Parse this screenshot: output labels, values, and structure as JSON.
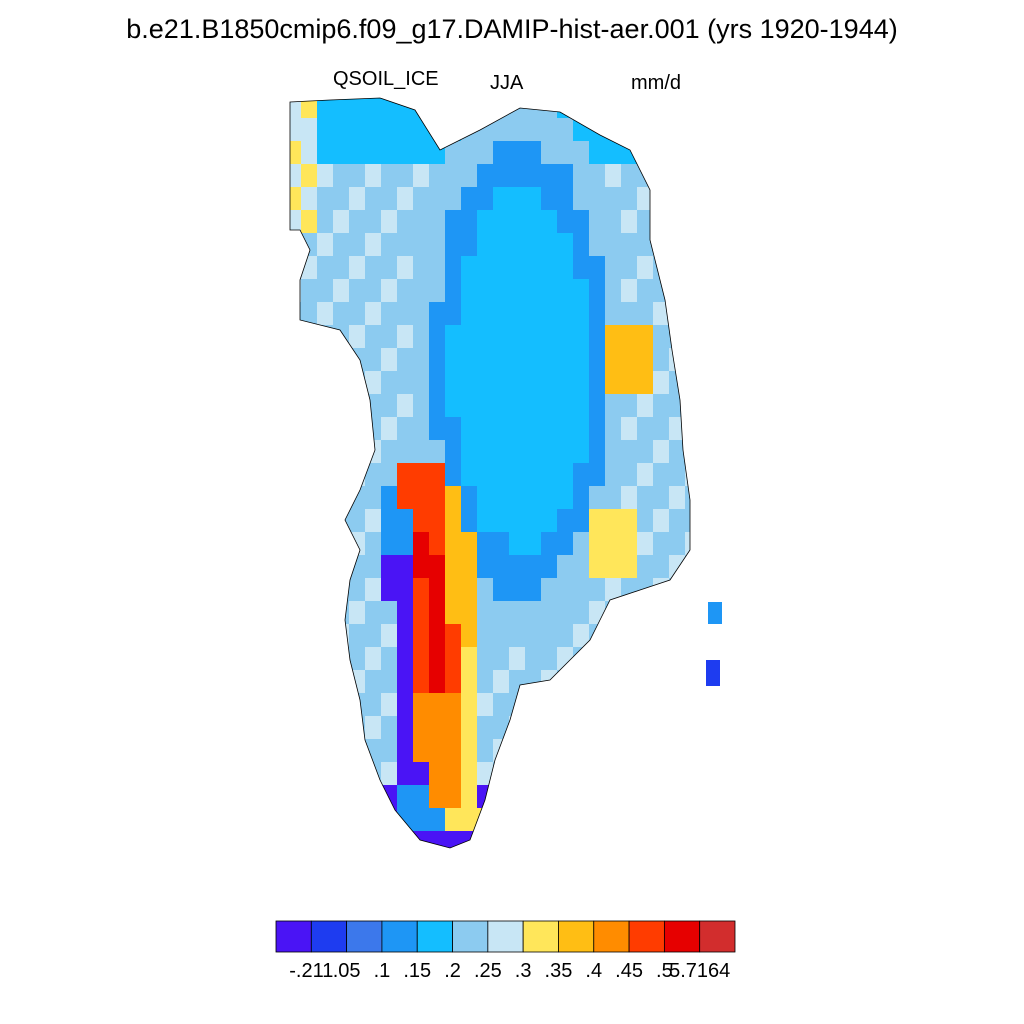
{
  "title": "b.e21.B1850cmip6.f09_g17.DAMIP-hist-aer.001 (yrs 1920-1944)",
  "variable": "QSOIL_ICE",
  "season": "JJA",
  "units": "mm/d",
  "region": "Greenland",
  "colorbar": {
    "colors": [
      "#4a14f5",
      "#1e3cf0",
      "#3c78eb",
      "#1e96f5",
      "#14beff",
      "#8ccbf0",
      "#c8e6f5",
      "#ffe65a",
      "#ffbe14",
      "#ff8c00",
      "#ff3c00",
      "#e60000",
      "#d22d2d"
    ],
    "labels": [
      "-.211",
      ".05",
      ".1",
      ".15",
      ".2",
      ".25",
      ".3",
      ".35",
      ".4",
      ".45",
      ".5",
      "5.7164"
    ]
  },
  "icons": {
    "map": "greenland-map"
  }
}
